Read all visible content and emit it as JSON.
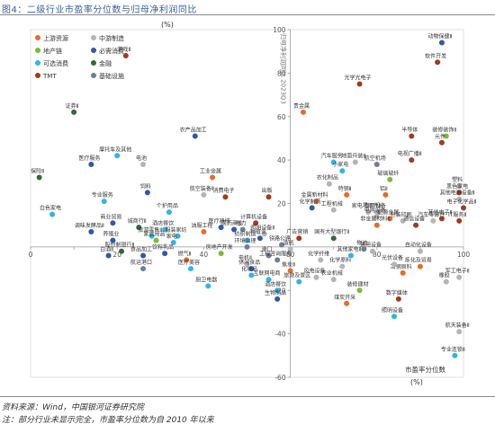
{
  "figure_title": "图4：二级行业市盈率分位数与归母净利润同比",
  "source_note": "资料来源：Wind，中国银河证券研究院",
  "footnote": "注：部分行业未显示完全，市盈率分位数为自 2010 年以来",
  "chart_data": {
    "type": "scatter",
    "xlabel": "市盈率分位数",
    "x_unit": "(%)",
    "ylabel": "归母净利润同比 2023Q3",
    "y_unit": "(%)",
    "xlim": [
      0,
      100
    ],
    "ylim": [
      -60,
      100
    ],
    "x_ticks": [
      0,
      10,
      20,
      30,
      40,
      50,
      60,
      70,
      80,
      90,
      100
    ],
    "x_tick_labels": [
      "0",
      "",
      "20",
      "",
      "40",
      "",
      "60",
      "",
      "80",
      "",
      "100"
    ],
    "y_ticks": [
      -60,
      -40,
      -20,
      0,
      20,
      40,
      60,
      80,
      100
    ],
    "y_tick_labels": [
      "-60",
      "-40",
      "-20",
      "",
      "20",
      "40",
      "60",
      "80",
      "100"
    ],
    "legend_position": "top-left",
    "series": [
      {
        "name": "上游资源",
        "color": "#e96a2a"
      },
      {
        "name": "中游制造",
        "color": "#b5b5b5"
      },
      {
        "name": "地产链",
        "color": "#7cba3b"
      },
      {
        "name": "必需消费",
        "color": "#2d5aa8"
      },
      {
        "name": "可选消费",
        "color": "#30b4e8"
      },
      {
        "name": "金融",
        "color": "#2e6b32"
      },
      {
        "name": "TMT",
        "color": "#a23b1a"
      },
      {
        "name": "基础设施",
        "color": "#6e7f99"
      }
    ],
    "points": [
      {
        "label": "游戏Ⅱ",
        "x": 22,
        "y": 88,
        "s": "TMT"
      },
      {
        "label": "动物保健Ⅱ",
        "x": 95,
        "y": 94,
        "s": "必需消费"
      },
      {
        "label": "软件开发",
        "x": 94,
        "y": 85,
        "s": "TMT"
      },
      {
        "label": "光学光电子",
        "x": 76,
        "y": 75,
        "s": "TMT"
      },
      {
        "label": "贵金属",
        "x": 63,
        "y": 62,
        "s": "上游资源"
      },
      {
        "label": "证券Ⅱ",
        "x": 10,
        "y": 62,
        "s": "金融"
      },
      {
        "label": "农产品加工",
        "x": 38,
        "y": 51,
        "s": "必需消费"
      },
      {
        "label": "半导体",
        "x": 88,
        "y": 51,
        "s": "TMT"
      },
      {
        "label": "装修装饰Ⅱ",
        "x": 96,
        "y": 51,
        "s": "地产链"
      },
      {
        "label": "元件",
        "x": 95,
        "y": 48,
        "s": "TMT"
      },
      {
        "label": "摩托车及其他",
        "x": 20,
        "y": 42,
        "s": "可选消费"
      },
      {
        "label": "医疗服务",
        "x": 14,
        "y": 38,
        "s": "必需消费"
      },
      {
        "label": "电池",
        "x": 26,
        "y": 38,
        "s": "中游制造"
      },
      {
        "label": "电视广播Ⅱ",
        "x": 88,
        "y": 40,
        "s": "TMT"
      },
      {
        "label": "汽车服务",
        "x": 70,
        "y": 39,
        "s": "可选消费"
      },
      {
        "label": "地面兵装Ⅱ",
        "x": 75,
        "y": 39,
        "s": "中游制造"
      },
      {
        "label": "航空机场",
        "x": 80,
        "y": 38,
        "s": "基础设施"
      },
      {
        "label": "小家电",
        "x": 72,
        "y": 35,
        "s": "可选消费"
      },
      {
        "label": "保险Ⅱ",
        "x": 2,
        "y": 32,
        "s": "金融"
      },
      {
        "label": "工业金属",
        "x": 42,
        "y": 32,
        "s": "上游资源"
      },
      {
        "label": "玻璃玻纤",
        "x": 83,
        "y": 31,
        "s": "地产链"
      },
      {
        "label": "塑料",
        "x": 99,
        "y": 28,
        "s": "中游制造"
      },
      {
        "label": "农化制品",
        "x": 69,
        "y": 29,
        "s": "中游制造"
      },
      {
        "label": "黑色家电",
        "x": 99,
        "y": 25,
        "s": "TMT"
      },
      {
        "label": "出版",
        "x": 55,
        "y": 23,
        "s": "TMT"
      },
      {
        "label": "饲料",
        "x": 27,
        "y": 25,
        "s": "必需消费"
      },
      {
        "label": "航空装备Ⅱ",
        "x": 40,
        "y": 24,
        "s": "中游制造"
      },
      {
        "label": "消费电子",
        "x": 45,
        "y": 23,
        "s": "TMT"
      },
      {
        "label": "特钢Ⅱ",
        "x": 73,
        "y": 24,
        "s": "上游资源"
      },
      {
        "label": "铝Ⅱ",
        "x": 82,
        "y": 24,
        "s": "上游资源"
      },
      {
        "label": "其他电源设备Ⅱ",
        "x": 99,
        "y": 22,
        "s": "中游制造"
      },
      {
        "label": "专业服务",
        "x": 17,
        "y": 21,
        "s": "可选消费"
      },
      {
        "label": "金属新材料",
        "x": 66,
        "y": 21,
        "s": "上游资源"
      },
      {
        "label": "化学制药",
        "x": 65,
        "y": 18,
        "s": "必需消费"
      },
      {
        "label": "电子化学品Ⅱ",
        "x": 100,
        "y": 18,
        "s": "TMT"
      },
      {
        "label": "工程机械",
        "x": 70,
        "y": 17,
        "s": "中游制造"
      },
      {
        "label": "家电零部件Ⅱ",
        "x": 78,
        "y": 16,
        "s": "中游制造"
      },
      {
        "label": "专用设备",
        "x": 80,
        "y": 16,
        "s": "中游制造"
      },
      {
        "label": "白色家电",
        "x": 5,
        "y": 15,
        "s": "可选消费"
      },
      {
        "label": "个护用品",
        "x": 32,
        "y": 16,
        "s": "可选消费"
      },
      {
        "label": "电网设备",
        "x": 80,
        "y": 14,
        "s": "中游制造"
      },
      {
        "label": "能源金属",
        "x": 83,
        "y": 13,
        "s": "上游资源"
      },
      {
        "label": "包装印刷",
        "x": 86,
        "y": 12,
        "s": "中游制造"
      },
      {
        "label": "其他电子Ⅱ",
        "x": 95,
        "y": 13,
        "s": "TMT"
      },
      {
        "label": "汽车零部件",
        "x": 93,
        "y": 12,
        "s": "中游制造"
      },
      {
        "label": "IT服务Ⅱ",
        "x": 99,
        "y": 12,
        "s": "TMT"
      },
      {
        "label": "计算机设备",
        "x": 52,
        "y": 11,
        "s": "TMT"
      },
      {
        "label": "非金属材料Ⅱ",
        "x": 80,
        "y": 10,
        "s": "上游资源"
      },
      {
        "label": "通信设备",
        "x": 89,
        "y": 10,
        "s": "TMT"
      },
      {
        "label": "商业贸易",
        "x": 19,
        "y": 11,
        "s": "必需消费"
      },
      {
        "label": "城商行Ⅱ",
        "x": 25,
        "y": 9,
        "s": "金融"
      },
      {
        "label": "酒店餐饮",
        "x": 31,
        "y": 8,
        "s": "可选消费"
      },
      {
        "label": "油服工程",
        "x": 40,
        "y": 7,
        "s": "上游资源"
      },
      {
        "label": "医疗器械",
        "x": 44,
        "y": 9,
        "s": "必需消费"
      },
      {
        "label": "调味发酵品Ⅱ",
        "x": 14,
        "y": 7,
        "s": "必需消费"
      },
      {
        "label": "电力",
        "x": 49,
        "y": 8,
        "s": "基础设施"
      },
      {
        "label": "照明设备Ⅱ",
        "x": 54,
        "y": 6,
        "s": "中游制造"
      },
      {
        "label": "广告营销",
        "x": 62,
        "y": 4,
        "s": "TMT"
      },
      {
        "label": "医药商业",
        "x": 47,
        "y": 8,
        "s": "必需消费"
      },
      {
        "label": "种植业",
        "x": 53,
        "y": 4,
        "s": "必需消费"
      },
      {
        "label": "旅游零售Ⅱ",
        "x": 28,
        "y": 5,
        "s": "可选消费"
      },
      {
        "label": "家居用品",
        "x": 29,
        "y": 3,
        "s": "地产链"
      },
      {
        "label": "服装家纺",
        "x": 34,
        "y": 5,
        "s": "可选消费"
      },
      {
        "label": "养殖业",
        "x": 19,
        "y": 3,
        "s": "必需消费"
      },
      {
        "label": "家电",
        "x": 33,
        "y": 2,
        "s": "可选消费"
      },
      {
        "label": "国有大型银行Ⅱ",
        "x": 70,
        "y": 4,
        "s": "金融"
      },
      {
        "label": "纺织制造",
        "x": 50,
        "y": 3,
        "s": "可选消费"
      },
      {
        "label": "铁路公路",
        "x": 58,
        "y": 1,
        "s": "基础设施"
      },
      {
        "label": "环境治理",
        "x": 50,
        "y": 0,
        "s": "基础设施"
      },
      {
        "label": "造纸",
        "x": 60,
        "y": -1,
        "s": "中游制造"
      },
      {
        "label": "物流",
        "x": 77,
        "y": -1,
        "s": "基础设施"
      },
      {
        "label": "股份制银行Ⅱ",
        "x": 21,
        "y": -2,
        "s": "金融"
      },
      {
        "label": "白酒Ⅱ",
        "x": 18,
        "y": -4,
        "s": "必需消费"
      },
      {
        "label": "食品加工",
        "x": 26,
        "y": -4,
        "s": "必需消费"
      },
      {
        "label": "房地产开发",
        "x": 44,
        "y": -3,
        "s": "地产链"
      },
      {
        "label": "饮料乳品",
        "x": 31,
        "y": -3,
        "s": "必需消费"
      },
      {
        "label": "通用设备",
        "x": 79,
        "y": -2,
        "s": "中游制造"
      },
      {
        "label": "自动化设备",
        "x": 90,
        "y": -2,
        "s": "中游制造"
      },
      {
        "label": "港口",
        "x": 55,
        "y": -4,
        "s": "基础设施"
      },
      {
        "label": "燃气Ⅱ",
        "x": 36,
        "y": -6,
        "s": "上游资源"
      },
      {
        "label": "工程咨询服务",
        "x": 57,
        "y": -6,
        "s": "基础设施"
      },
      {
        "label": "化学纤维",
        "x": 67,
        "y": -6,
        "s": "中游制造"
      },
      {
        "label": "化学原料",
        "x": 72,
        "y": -9,
        "s": "中游制造"
      },
      {
        "label": "其他家电Ⅱ",
        "x": 74,
        "y": -4,
        "s": "可选消费"
      },
      {
        "label": "炼化及贸易",
        "x": 90,
        "y": -9,
        "s": "上游资源"
      },
      {
        "label": "航运港口",
        "x": 26,
        "y": -10,
        "s": "基础设施"
      },
      {
        "label": "医疗美容",
        "x": 37,
        "y": -10,
        "s": "可选消费"
      },
      {
        "label": "电机Ⅱ",
        "x": 50,
        "y": -8,
        "s": "中游制造"
      },
      {
        "label": "休闲食品",
        "x": 51,
        "y": -10,
        "s": "必需消费"
      },
      {
        "label": "化妆品",
        "x": 51,
        "y": -13,
        "s": "可选消费"
      },
      {
        "label": "焦炭Ⅱ",
        "x": 60,
        "y": -11,
        "s": "上游资源"
      },
      {
        "label": "冶钢原料",
        "x": 86,
        "y": -12,
        "s": "上游资源"
      },
      {
        "label": "光伏设备",
        "x": 84,
        "y": -8,
        "s": "中游制造"
      },
      {
        "label": "互联网电商",
        "x": 55,
        "y": -15,
        "s": "可选消费"
      },
      {
        "label": "旅游及景区",
        "x": 62,
        "y": -16,
        "s": "可选消费"
      },
      {
        "label": "风电设备",
        "x": 66,
        "y": -14,
        "s": "中游制造"
      },
      {
        "label": "农业机械",
        "x": 70,
        "y": -15,
        "s": "中游制造"
      },
      {
        "label": "军工电子Ⅱ",
        "x": 99,
        "y": -14,
        "s": "中游制造"
      },
      {
        "label": "橡胶",
        "x": 96,
        "y": -16,
        "s": "中游制造"
      },
      {
        "label": "厨卫电器",
        "x": 41,
        "y": -18,
        "s": "可选消费"
      },
      {
        "label": "酒店餐饮",
        "x": 57,
        "y": -20,
        "s": "可选消费"
      },
      {
        "label": "装修建材",
        "x": 76,
        "y": -20,
        "s": "地产链"
      },
      {
        "label": "数字媒体",
        "x": 85,
        "y": -24,
        "s": "TMT"
      },
      {
        "label": "生物制品",
        "x": 57,
        "y": -24,
        "s": "必需消费"
      },
      {
        "label": "煤炭开采",
        "x": 73,
        "y": -26,
        "s": "上游资源"
      },
      {
        "label": "照明设备",
        "x": 84,
        "y": -32,
        "s": "可选消费"
      },
      {
        "label": "航天装备Ⅱ",
        "x": 99,
        "y": -39,
        "s": "中游制造"
      },
      {
        "label": "专业连锁Ⅱ",
        "x": 98,
        "y": -50,
        "s": "可选消费"
      }
    ]
  }
}
